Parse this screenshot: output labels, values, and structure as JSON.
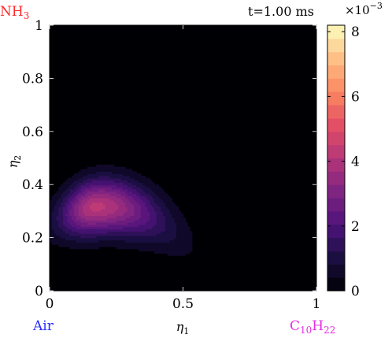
{
  "chart_data": {
    "type": "heatmap",
    "time_label": "t=1.00 ms",
    "corner_labels": {
      "top_left": {
        "base": "NH",
        "sub": "3",
        "color": "#ff2a2a"
      },
      "bottom_left": {
        "text": "Air",
        "color": "#2a2aff"
      },
      "bottom_right": {
        "base": "C",
        "sub1": "10",
        "mid": "H",
        "sub2": "22",
        "color": "#e62ee6"
      }
    },
    "x_axis": {
      "label_base": "η",
      "label_sub": "1",
      "range": [
        0,
        1
      ],
      "ticks": [
        0,
        0.5,
        1
      ],
      "tick_labels": [
        "0",
        "0.5",
        "1"
      ]
    },
    "y_axis": {
      "label_base": "η",
      "label_sub": "2",
      "range": [
        0,
        1
      ],
      "ticks": [
        0,
        0.2,
        0.4,
        0.6,
        0.8,
        1
      ],
      "tick_labels": [
        "0",
        "0.2",
        "0.4",
        "0.6",
        "0.8",
        "1"
      ]
    },
    "colorbar": {
      "range": [
        0,
        0.0082
      ],
      "ticks": [
        0,
        2,
        4,
        6,
        8
      ],
      "tick_labels": [
        "0",
        "2",
        "4",
        "6",
        "8"
      ],
      "multiplier_base": "×10",
      "multiplier_exp": "−3",
      "colormap": "magma",
      "levels": 20
    },
    "peak": {
      "eta1": 0.17,
      "eta2": 0.33,
      "value": 0.0042
    },
    "background_color": "#000004"
  }
}
